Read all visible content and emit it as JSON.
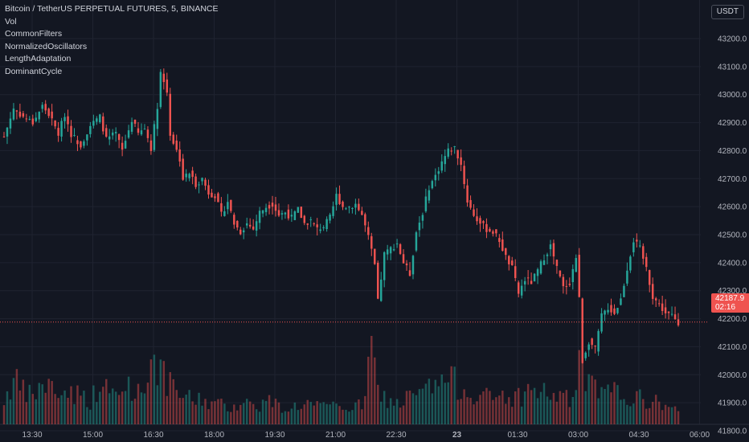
{
  "legend": {
    "title": "Bitcoin / TetherUS PERPETUAL FUTURES, 5, BINANCE",
    "indicators": [
      "Vol",
      "CommonFilters",
      "NormalizedOscillators",
      "LengthAdaptation",
      "DominantCycle"
    ]
  },
  "currency": "USDT",
  "colors": {
    "background": "#131722",
    "up": "#26a69a",
    "down": "#ef5350",
    "grid": "#1f2330",
    "axis_text": "#b2b5be"
  },
  "last_price": {
    "price": "42187.9",
    "countdown": "02:16"
  },
  "chart_data": {
    "type": "candlestick",
    "title": "Bitcoin / TetherUS PERPETUAL FUTURES, 5, BINANCE",
    "timeframe": "5",
    "y_ticks": [
      43200,
      43100,
      43000,
      42900,
      42800,
      42700,
      42600,
      42500,
      42400,
      42300,
      42200,
      42100,
      42000,
      41900,
      41800
    ],
    "y_tick_labels": [
      "43200.0",
      "43100.0",
      "43000.0",
      "42900.0",
      "42800.0",
      "42700.0",
      "42600.0",
      "42500.0",
      "42400.0",
      "42300.0",
      "42200.0",
      "42100.0",
      "42000.0",
      "41900.0",
      "41800.0"
    ],
    "x_tick_labels": [
      "13:30",
      "15:00",
      "16:30",
      "18:00",
      "19:30",
      "21:00",
      "22:30",
      "23",
      "01:30",
      "03:00",
      "04:30",
      "06:00"
    ],
    "ylim": [
      41740,
      43270
    ],
    "grid": true,
    "current_price": 42187.9,
    "price_path": [
      [
        0,
        42850
      ],
      [
        3,
        42950
      ],
      [
        6,
        42920
      ],
      [
        9,
        42900
      ],
      [
        12,
        42960
      ],
      [
        14,
        42930
      ],
      [
        17,
        42860
      ],
      [
        19,
        42930
      ],
      [
        21,
        42860
      ],
      [
        24,
        42820
      ],
      [
        27,
        42890
      ],
      [
        30,
        42920
      ],
      [
        32,
        42840
      ],
      [
        35,
        42860
      ],
      [
        37,
        42800
      ],
      [
        40,
        42910
      ],
      [
        42,
        42860
      ],
      [
        44,
        42880
      ],
      [
        46,
        42810
      ],
      [
        48,
        42960
      ],
      [
        49,
        43080
      ],
      [
        51,
        43010
      ],
      [
        52,
        42860
      ],
      [
        54,
        42800
      ],
      [
        55,
        42770
      ],
      [
        56,
        42700
      ],
      [
        58,
        42720
      ],
      [
        60,
        42680
      ],
      [
        62,
        42700
      ],
      [
        64,
        42650
      ],
      [
        66,
        42640
      ],
      [
        68,
        42570
      ],
      [
        70,
        42620
      ],
      [
        72,
        42540
      ],
      [
        74,
        42510
      ],
      [
        76,
        42540
      ],
      [
        78,
        42520
      ],
      [
        80,
        42580
      ],
      [
        82,
        42600
      ],
      [
        84,
        42610
      ],
      [
        86,
        42570
      ],
      [
        88,
        42580
      ],
      [
        90,
        42560
      ],
      [
        92,
        42590
      ],
      [
        94,
        42540
      ],
      [
        96,
        42550
      ],
      [
        98,
        42520
      ],
      [
        100,
        42530
      ],
      [
        102,
        42560
      ],
      [
        104,
        42640
      ],
      [
        106,
        42600
      ],
      [
        108,
        42600
      ],
      [
        110,
        42610
      ],
      [
        112,
        42570
      ],
      [
        114,
        42490
      ],
      [
        116,
        42390
      ],
      [
        117,
        42260
      ],
      [
        119,
        42430
      ],
      [
        121,
        42450
      ],
      [
        123,
        42470
      ],
      [
        125,
        42400
      ],
      [
        127,
        42360
      ],
      [
        129,
        42510
      ],
      [
        131,
        42580
      ],
      [
        133,
        42670
      ],
      [
        135,
        42710
      ],
      [
        137,
        42760
      ],
      [
        139,
        42800
      ],
      [
        141,
        42810
      ],
      [
        143,
        42750
      ],
      [
        145,
        42620
      ],
      [
        147,
        42570
      ],
      [
        149,
        42540
      ],
      [
        151,
        42520
      ],
      [
        153,
        42510
      ],
      [
        155,
        42480
      ],
      [
        157,
        42420
      ],
      [
        159,
        42380
      ],
      [
        161,
        42290
      ],
      [
        163,
        42340
      ],
      [
        165,
        42330
      ],
      [
        167,
        42370
      ],
      [
        169,
        42420
      ],
      [
        171,
        42460
      ],
      [
        173,
        42380
      ],
      [
        175,
        42310
      ],
      [
        177,
        42330
      ],
      [
        179,
        42420
      ],
      [
        180,
        42270
      ],
      [
        181,
        42050
      ],
      [
        183,
        42120
      ],
      [
        185,
        42090
      ],
      [
        187,
        42210
      ],
      [
        189,
        42240
      ],
      [
        191,
        42220
      ],
      [
        193,
        42270
      ],
      [
        195,
        42380
      ],
      [
        197,
        42480
      ],
      [
        199,
        42450
      ],
      [
        201,
        42380
      ],
      [
        203,
        42280
      ],
      [
        205,
        42250
      ],
      [
        207,
        42220
      ],
      [
        209,
        42210
      ],
      [
        211,
        42180
      ]
    ],
    "volume": [
      [
        0,
        30
      ],
      [
        3,
        55
      ],
      [
        6,
        40
      ],
      [
        9,
        35
      ],
      [
        12,
        50
      ],
      [
        15,
        45
      ],
      [
        18,
        38
      ],
      [
        21,
        42
      ],
      [
        24,
        36
      ],
      [
        27,
        30
      ],
      [
        30,
        48
      ],
      [
        33,
        40
      ],
      [
        36,
        35
      ],
      [
        39,
        52
      ],
      [
        42,
        38
      ],
      [
        45,
        60
      ],
      [
        47,
        95
      ],
      [
        48,
        78
      ],
      [
        50,
        58
      ],
      [
        53,
        42
      ],
      [
        56,
        36
      ],
      [
        59,
        30
      ],
      [
        62,
        32
      ],
      [
        65,
        26
      ],
      [
        68,
        24
      ],
      [
        71,
        22
      ],
      [
        74,
        28
      ],
      [
        77,
        26
      ],
      [
        80,
        24
      ],
      [
        83,
        30
      ],
      [
        86,
        22
      ],
      [
        89,
        20
      ],
      [
        92,
        24
      ],
      [
        95,
        26
      ],
      [
        98,
        22
      ],
      [
        101,
        20
      ],
      [
        104,
        24
      ],
      [
        107,
        22
      ],
      [
        110,
        20
      ],
      [
        113,
        30
      ],
      [
        115,
        110
      ],
      [
        117,
        40
      ],
      [
        120,
        30
      ],
      [
        123,
        26
      ],
      [
        126,
        32
      ],
      [
        129,
        36
      ],
      [
        132,
        42
      ],
      [
        135,
        48
      ],
      [
        138,
        56
      ],
      [
        141,
        52
      ],
      [
        144,
        44
      ],
      [
        147,
        40
      ],
      [
        150,
        36
      ],
      [
        153,
        30
      ],
      [
        156,
        38
      ],
      [
        159,
        32
      ],
      [
        162,
        36
      ],
      [
        165,
        44
      ],
      [
        168,
        40
      ],
      [
        171,
        38
      ],
      [
        174,
        34
      ],
      [
        177,
        30
      ],
      [
        179,
        40
      ],
      [
        180,
        95
      ],
      [
        182,
        54
      ],
      [
        185,
        42
      ],
      [
        188,
        36
      ],
      [
        191,
        40
      ],
      [
        194,
        36
      ],
      [
        197,
        34
      ],
      [
        200,
        30
      ],
      [
        203,
        28
      ],
      [
        206,
        26
      ],
      [
        209,
        22
      ],
      [
        211,
        14
      ]
    ]
  }
}
